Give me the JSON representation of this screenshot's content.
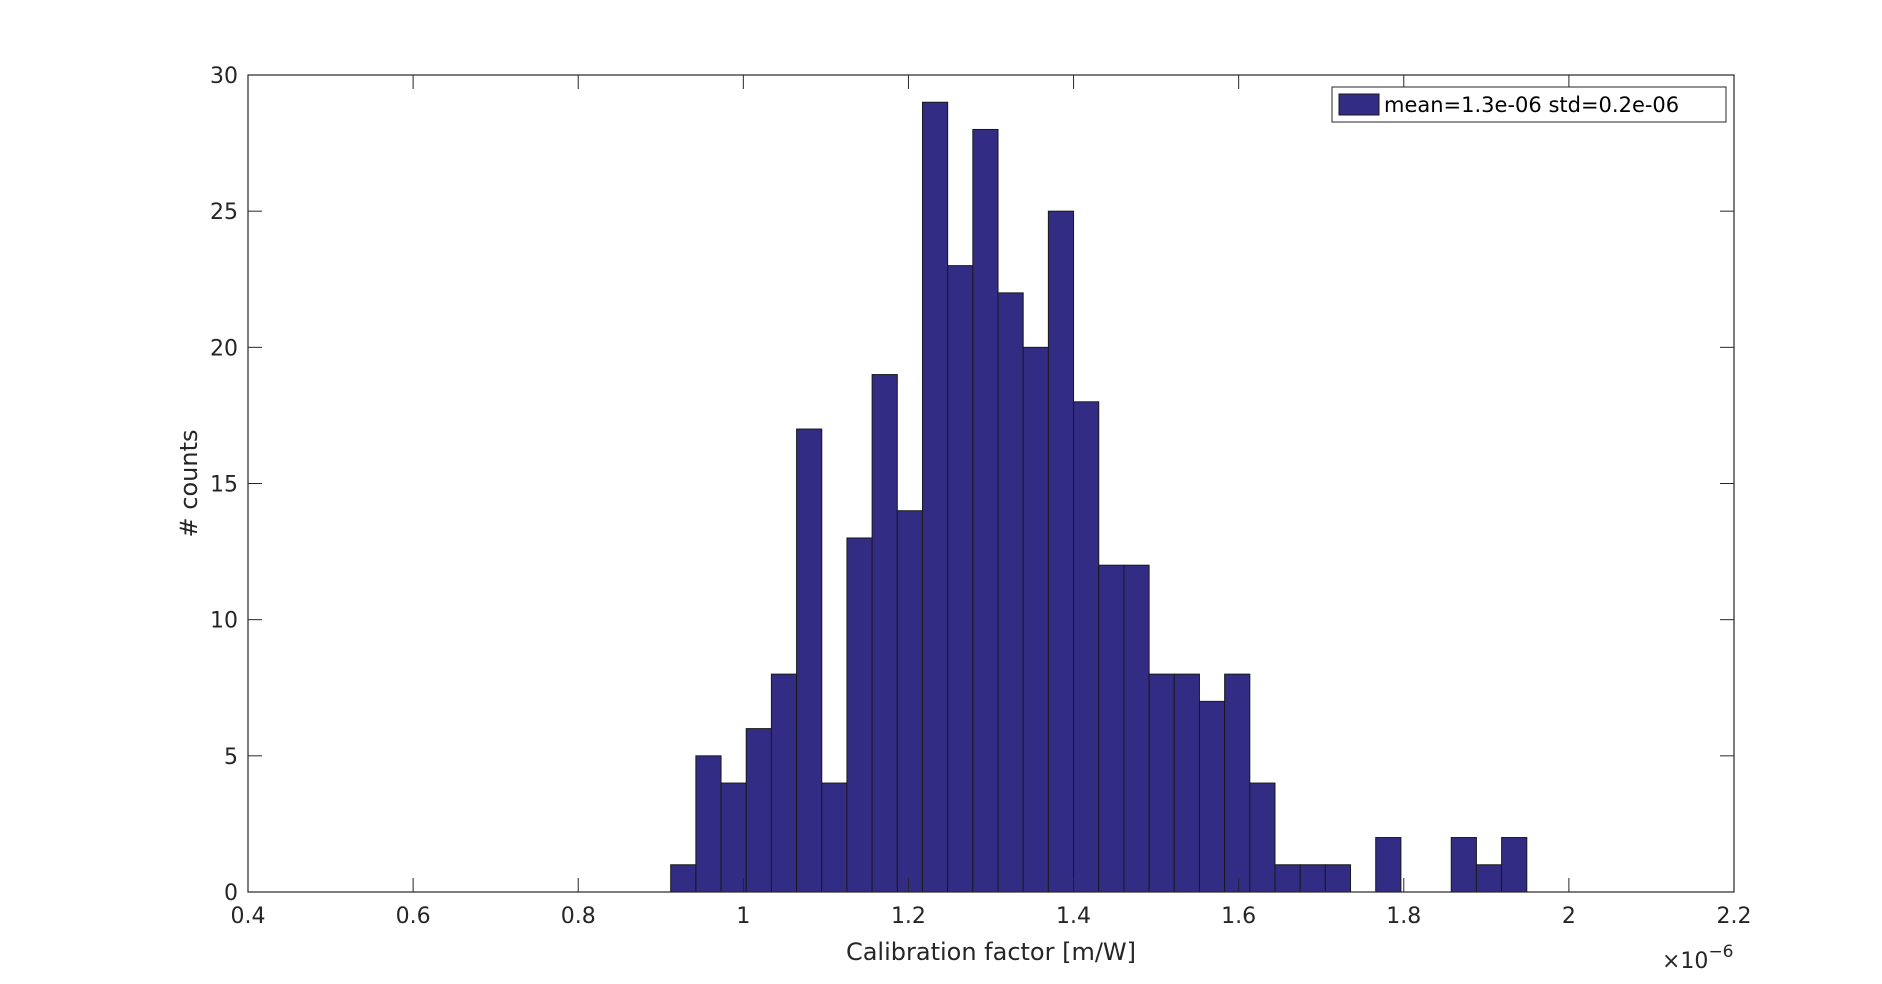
{
  "chart_data": {
    "type": "bar",
    "subtype": "histogram",
    "xlabel": "Calibration factor [m/W]",
    "ylabel": "# counts",
    "x_multiplier_label": "×10",
    "x_multiplier_exponent": "−6",
    "xlim": [
      0.4,
      2.2
    ],
    "ylim": [
      0,
      30
    ],
    "xticks": [
      0.4,
      0.6,
      0.8,
      1,
      1.2,
      1.4,
      1.6,
      1.8,
      2,
      2.2
    ],
    "xtick_labels": [
      "0.4",
      "0.6",
      "0.8",
      "1",
      "1.2",
      "1.4",
      "1.6",
      "1.8",
      "2",
      "2.2"
    ],
    "yticks": [
      0,
      5,
      10,
      15,
      20,
      25,
      30
    ],
    "ytick_labels": [
      "0",
      "5",
      "10",
      "15",
      "20",
      "25",
      "30"
    ],
    "bin_start": 0.912,
    "bin_width": 0.0305,
    "values": [
      1,
      5,
      4,
      6,
      8,
      17,
      4,
      13,
      19,
      14,
      29,
      23,
      28,
      22,
      20,
      25,
      18,
      12,
      12,
      8,
      8,
      7,
      8,
      4,
      1,
      1,
      1,
      0,
      2,
      0,
      0,
      2,
      1,
      2
    ],
    "series": [
      {
        "name": "mean=1.3e-06 std=0.2e-06",
        "color": "#322C84"
      }
    ],
    "legend": {
      "placement": "top-right",
      "label": "mean=1.3e-06 std=0.2e-06"
    },
    "grid": false,
    "colors": {
      "bar_fill": "#322C84",
      "bar_edge": "#1a1a1a",
      "axis": "#262626"
    }
  }
}
